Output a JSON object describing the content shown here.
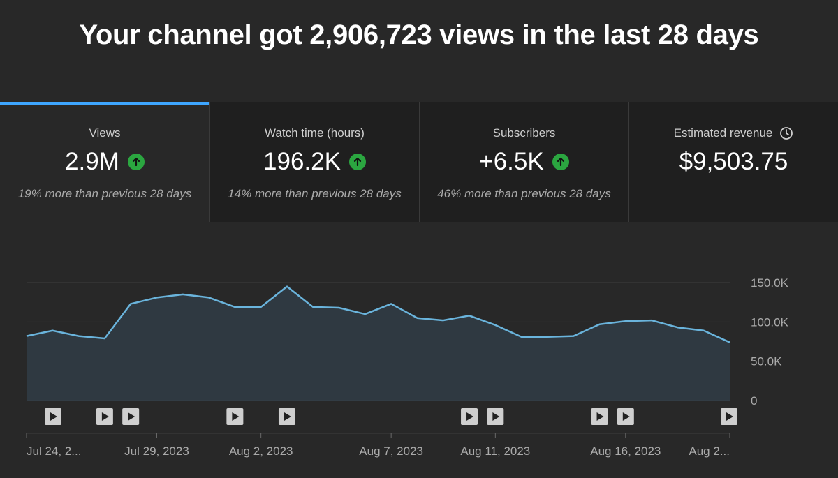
{
  "header": {
    "title": "Your channel got 2,906,723 views in the last 28 days"
  },
  "cards": [
    {
      "label": "Views",
      "value": "2.9M",
      "trend": "up",
      "note": "19% more than previous 28 days",
      "active": true
    },
    {
      "label": "Watch time (hours)",
      "value": "196.2K",
      "trend": "up",
      "note": "14% more than previous 28 days",
      "active": false
    },
    {
      "label": "Subscribers",
      "value": "+6.5K",
      "trend": "up",
      "note": "46% more than previous 28 days",
      "active": false
    },
    {
      "label": "Estimated revenue",
      "value": "$9,503.75",
      "trend": "",
      "note": "",
      "active": false,
      "icon": "clock-icon"
    }
  ],
  "colors": {
    "accent": "#3ea6ff",
    "line": "#6ab4dc",
    "area": "#2f3a42",
    "positive": "#2ba640"
  },
  "chart_data": {
    "type": "area",
    "x": [
      "Jul 24, 2023",
      "Jul 25, 2023",
      "Jul 26, 2023",
      "Jul 27, 2023",
      "Jul 28, 2023",
      "Jul 29, 2023",
      "Jul 30, 2023",
      "Jul 31, 2023",
      "Aug 1, 2023",
      "Aug 2, 2023",
      "Aug 3, 2023",
      "Aug 4, 2023",
      "Aug 5, 2023",
      "Aug 6, 2023",
      "Aug 7, 2023",
      "Aug 8, 2023",
      "Aug 9, 2023",
      "Aug 10, 2023",
      "Aug 11, 2023",
      "Aug 12, 2023",
      "Aug 13, 2023",
      "Aug 14, 2023",
      "Aug 15, 2023",
      "Aug 16, 2023",
      "Aug 17, 2023",
      "Aug 18, 2023",
      "Aug 19, 2023",
      "Aug 20, 2023"
    ],
    "series": [
      {
        "values": [
          82000,
          89000,
          82000,
          79000,
          123000,
          131000,
          135000,
          131000,
          119000,
          119000,
          145000,
          119000,
          118000,
          110000,
          123000,
          105000,
          102000,
          108000,
          96000,
          81000,
          81000,
          82000,
          97000,
          101000,
          102000,
          93000,
          89000,
          74000
        ]
      }
    ],
    "ylim": [
      0,
      150000
    ],
    "yticks": [
      "150.0K",
      "100.0K",
      "50.0K",
      "0"
    ],
    "ytick_values": [
      150000,
      100000,
      50000,
      0
    ],
    "xtick_labels": [
      {
        "i": 0,
        "label": "Jul 24, 2..."
      },
      {
        "i": 5,
        "label": "Jul 29, 2023"
      },
      {
        "i": 9,
        "label": "Aug 2, 2023"
      },
      {
        "i": 14,
        "label": "Aug 7, 2023"
      },
      {
        "i": 18,
        "label": "Aug 11, 2023"
      },
      {
        "i": 23,
        "label": "Aug 16, 2023"
      },
      {
        "i": 27,
        "label": "Aug 2..."
      }
    ],
    "video_markers": [
      0,
      3,
      4,
      8,
      10,
      17,
      18,
      22,
      23,
      27
    ],
    "grid": true
  }
}
